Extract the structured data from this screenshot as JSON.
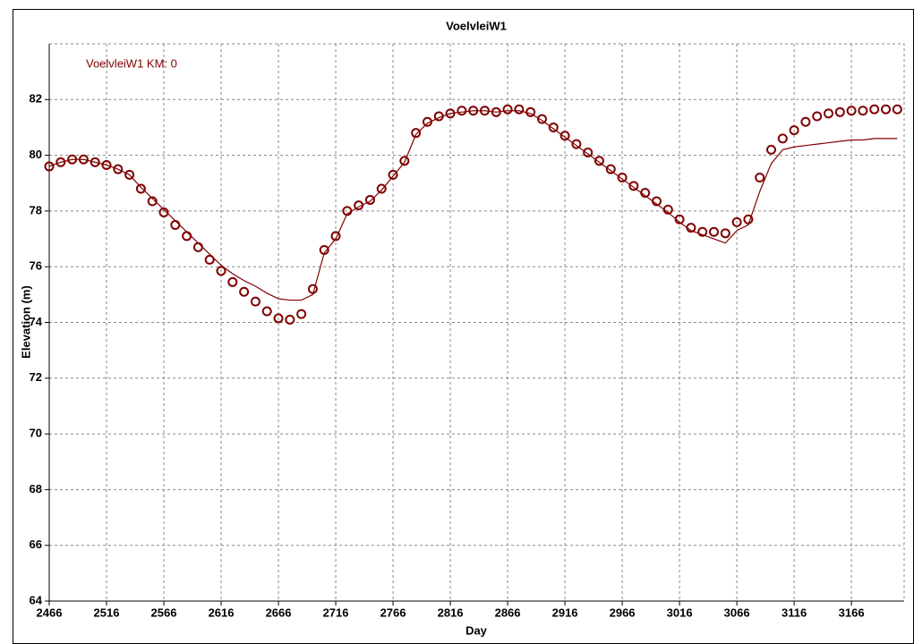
{
  "chart_data": {
    "type": "line",
    "title": "VoelvleiW1",
    "annotation": "VoelvleiW1 KM: 0",
    "xlabel": "Day",
    "ylabel": "Elevation (m)",
    "x": [
      2466,
      2476,
      2486,
      2496,
      2506,
      2516,
      2526,
      2536,
      2546,
      2556,
      2566,
      2576,
      2586,
      2596,
      2606,
      2616,
      2626,
      2636,
      2646,
      2656,
      2666,
      2676,
      2686,
      2696,
      2706,
      2716,
      2726,
      2736,
      2746,
      2756,
      2766,
      2776,
      2786,
      2796,
      2806,
      2816,
      2826,
      2836,
      2846,
      2856,
      2866,
      2876,
      2886,
      2896,
      2906,
      2916,
      2926,
      2936,
      2946,
      2956,
      2966,
      2976,
      2986,
      2996,
      3006,
      3016,
      3026,
      3036,
      3046,
      3056,
      3066,
      3076,
      3086,
      3096,
      3106,
      3116,
      3126,
      3136,
      3146,
      3156,
      3166,
      3176,
      3186,
      3196,
      3206
    ],
    "series": [
      {
        "color": "#800000",
        "marker": "circle",
        "values": [
          79.6,
          79.75,
          79.85,
          79.85,
          79.75,
          79.65,
          79.5,
          79.3,
          78.8,
          78.35,
          77.95,
          77.5,
          77.1,
          76.7,
          76.25,
          75.85,
          75.45,
          75.1,
          74.75,
          74.4,
          74.15,
          74.1,
          74.3,
          75.2,
          76.6,
          77.1,
          78.0,
          78.2,
          78.4,
          78.8,
          79.3,
          79.8,
          80.8,
          81.2,
          81.4,
          81.5,
          81.6,
          81.6,
          81.6,
          81.55,
          81.65,
          81.65,
          81.55,
          81.3,
          81.0,
          80.7,
          80.4,
          80.1,
          79.8,
          79.5,
          79.2,
          78.9,
          78.65,
          78.35,
          78.05,
          77.7,
          77.4,
          77.25,
          77.25,
          77.2,
          77.6,
          77.7,
          79.2,
          80.2,
          80.6,
          80.9,
          81.2,
          81.4,
          81.5,
          81.55,
          81.6,
          81.6,
          81.65,
          81.65,
          81.65
        ]
      },
      {
        "color": "#800000",
        "marker": "none",
        "values": [
          79.6,
          79.75,
          79.85,
          79.85,
          79.75,
          79.65,
          79.5,
          79.3,
          78.85,
          78.45,
          78.05,
          77.65,
          77.25,
          76.85,
          76.45,
          76.05,
          75.75,
          75.5,
          75.3,
          75.05,
          74.85,
          74.8,
          74.8,
          75.0,
          76.5,
          77.0,
          77.9,
          78.15,
          78.35,
          78.75,
          79.25,
          79.75,
          80.75,
          81.15,
          81.35,
          81.5,
          81.55,
          81.6,
          81.6,
          81.55,
          81.6,
          81.6,
          81.5,
          81.25,
          80.95,
          80.65,
          80.35,
          80.05,
          79.75,
          79.45,
          79.15,
          78.85,
          78.55,
          78.25,
          77.95,
          77.6,
          77.3,
          77.15,
          77.0,
          76.85,
          77.3,
          77.5,
          78.7,
          79.7,
          80.2,
          80.3,
          80.35,
          80.4,
          80.45,
          80.5,
          80.55,
          80.55,
          80.6,
          80.6,
          80.6
        ]
      }
    ],
    "xlim": [
      2466,
      3212
    ],
    "ylim": [
      64,
      84
    ],
    "xticks": [
      2466,
      2516,
      2566,
      2616,
      2666,
      2716,
      2766,
      2816,
      2866,
      2916,
      2966,
      3016,
      3066,
      3116,
      3166
    ],
    "yticks": [
      64,
      66,
      68,
      70,
      72,
      74,
      76,
      78,
      80,
      82
    ],
    "grid": true
  }
}
